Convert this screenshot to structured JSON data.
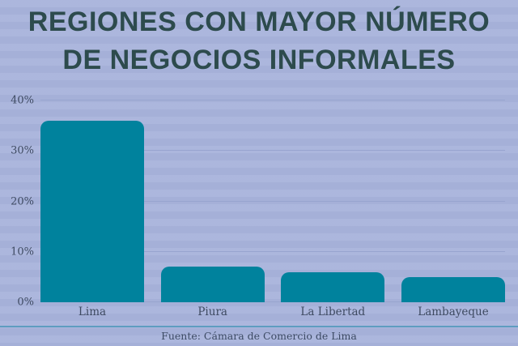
{
  "title": {
    "line1": "REGIONES CON MAYOR NÚMERO",
    "line2": "DE NEGOCIOS INFORMALES"
  },
  "footer": {
    "source": "Fuente: Cámara de Comercio de Lima"
  },
  "colors": {
    "background": "#a9b4dc",
    "bar": "#00829d",
    "title_text": "#2d4b4d",
    "axis_text": "#3e4a61",
    "gridline": "#98a4cf",
    "divider": "#5e9dc0",
    "source_text": "#3c4a63"
  },
  "chart_data": {
    "type": "bar",
    "title": "REGIONES CON MAYOR NÚMERO DE NEGOCIOS INFORMALES",
    "categories": [
      "Lima",
      "Piura",
      "La Libertad",
      "Lambayeque"
    ],
    "values": [
      36,
      7,
      6,
      5
    ],
    "value_unit": "%",
    "xlabel": "",
    "ylabel": "",
    "ylim": [
      0,
      40
    ],
    "ytick_step": 10,
    "yticks": [
      "0%",
      "10%",
      "20%",
      "30%",
      "40%"
    ],
    "grid": true,
    "legend": false,
    "source": "Fuente: Cámara de Comercio de Lima"
  }
}
